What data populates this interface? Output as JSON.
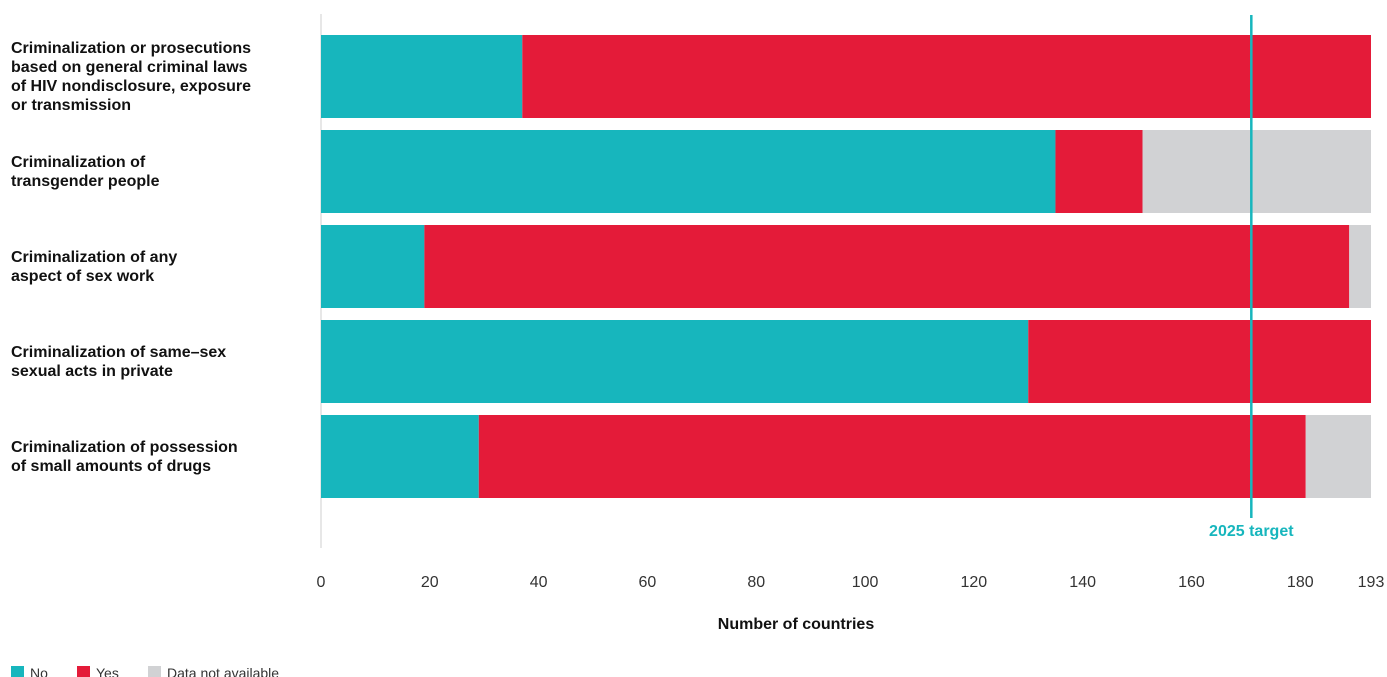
{
  "chart_data": {
    "type": "bar",
    "orientation": "horizontal",
    "stacked": true,
    "categories": [
      "Criminalization or prosecutions based on general criminal laws of HIV nondisclosure, exposure or transmission",
      "Criminalization of transgender people",
      "Criminalization of any aspect of sex work",
      "Criminalization of same–sex sexual acts in private",
      "Criminalization of possession of small amounts of drugs"
    ],
    "category_label_lines": [
      [
        "Criminalization or prosecutions",
        "based on general criminal laws",
        "of HIV nondisclosure, exposure",
        "or transmission"
      ],
      [
        "Criminalization of",
        "transgender people"
      ],
      [
        "Criminalization of any",
        "aspect of sex work"
      ],
      [
        "Criminalization of same–sex",
        "sexual acts in private"
      ],
      [
        "Criminalization of possession",
        "of small amounts of drugs"
      ]
    ],
    "series": [
      {
        "name": "No",
        "color": "#17b6bd",
        "values": [
          37,
          135,
          19,
          130,
          29
        ]
      },
      {
        "name": "Yes",
        "color": "#e41b39",
        "values": [
          156,
          16,
          170,
          63,
          152
        ]
      },
      {
        "name": "Data not available",
        "color": "#d1d2d4",
        "values": [
          0,
          42,
          4,
          0,
          12
        ]
      }
    ],
    "xlabel": "Number of countries",
    "xlim": [
      0,
      193
    ],
    "xticks": [
      0,
      20,
      40,
      60,
      80,
      100,
      120,
      140,
      160,
      180,
      193
    ],
    "grid": false,
    "legend_position": "bottom-left",
    "target_line": {
      "value": 171,
      "label": "2025 target",
      "color": "#17b6bd"
    }
  }
}
